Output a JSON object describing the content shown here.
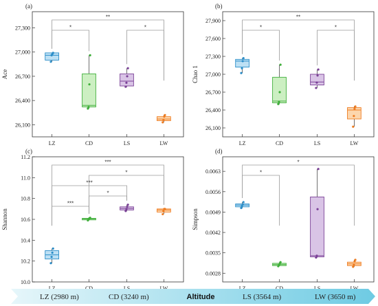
{
  "chart_data": [
    {
      "type": "box",
      "panel": "(a)",
      "ylabel": "Ace",
      "categories": [
        "LZ",
        "CD",
        "LS",
        "LW"
      ],
      "yticks": [
        26100,
        26400,
        26700,
        27000,
        27300
      ],
      "ytick_labels": [
        "26,100",
        "26,400",
        "26,700",
        "27,000",
        "27,300"
      ],
      "ylim": [
        25950,
        27500
      ],
      "boxes": [
        {
          "q1": 26900,
          "median": 26960,
          "q3": 26990,
          "min": 26880,
          "max": 26990,
          "points": [
            26880,
            26960,
            26975,
            26990
          ]
        },
        {
          "q1": 26320,
          "median": 26340,
          "q3": 26730,
          "min": 26300,
          "max": 26960,
          "points": [
            26300,
            26320,
            26600,
            26960
          ]
        },
        {
          "q1": 26580,
          "median": 26640,
          "q3": 26730,
          "min": 26570,
          "max": 26800,
          "points": [
            26570,
            26620,
            26700,
            26800
          ]
        },
        {
          "q1": 26150,
          "median": 26170,
          "q3": 26200,
          "min": 26130,
          "max": 26220,
          "points": [
            26130,
            26160,
            26200,
            26220
          ]
        }
      ],
      "brackets": [
        {
          "from": 0,
          "to": 3,
          "label": "**",
          "level": 0
        },
        {
          "from": 0,
          "to": 1,
          "label": "*",
          "level": 1
        },
        {
          "from": 2,
          "to": 3,
          "label": "*",
          "level": 1
        }
      ]
    },
    {
      "type": "box",
      "panel": "(b)",
      "ylabel": "Chao 1",
      "categories": [
        "LZ",
        "CD",
        "LS",
        "LW"
      ],
      "yticks": [
        26100,
        26400,
        26700,
        27000,
        27300,
        27600,
        27900
      ],
      "ytick_labels": [
        "26,100",
        "26,400",
        "26,700",
        "27,000",
        "27,300",
        "27,600",
        "27,900"
      ],
      "ylim": [
        25950,
        28050
      ],
      "boxes": [
        {
          "q1": 27120,
          "median": 27220,
          "q3": 27250,
          "min": 27020,
          "max": 27270,
          "points": [
            27020,
            27100,
            27220,
            27270
          ]
        },
        {
          "q1": 26520,
          "median": 26550,
          "q3": 26950,
          "min": 26500,
          "max": 27160,
          "points": [
            26500,
            26540,
            26700,
            27160
          ]
        },
        {
          "q1": 26820,
          "median": 26870,
          "q3": 27000,
          "min": 26770,
          "max": 27080,
          "points": [
            26770,
            26860,
            26980,
            27080
          ]
        },
        {
          "q1": 26250,
          "median": 26400,
          "q3": 26440,
          "min": 26120,
          "max": 26460,
          "points": [
            26120,
            26300,
            26420,
            26460
          ]
        }
      ],
      "brackets": [
        {
          "from": 0,
          "to": 3,
          "label": "**",
          "level": 0
        },
        {
          "from": 0,
          "to": 1,
          "label": "*",
          "level": 1
        },
        {
          "from": 2,
          "to": 3,
          "label": "*",
          "level": 1
        }
      ]
    },
    {
      "type": "box",
      "panel": "(c)",
      "ylabel": "Shannon",
      "categories": [
        "LZ",
        "CD",
        "LS",
        "LW"
      ],
      "yticks": [
        10.0,
        10.2,
        10.4,
        10.6,
        10.8,
        11.0,
        11.2
      ],
      "ytick_labels": [
        "10.0",
        "10.2",
        "10.4",
        "10.6",
        "10.8",
        "11.0",
        "11.2"
      ],
      "ylim": [
        10.0,
        11.2
      ],
      "boxes": [
        {
          "q1": 10.22,
          "median": 10.26,
          "q3": 10.3,
          "min": 10.18,
          "max": 10.32,
          "points": [
            10.18,
            10.24,
            10.28,
            10.32
          ]
        },
        {
          "q1": 10.595,
          "median": 10.605,
          "q3": 10.61,
          "min": 10.59,
          "max": 10.615,
          "points": [
            10.59,
            10.6,
            10.61,
            10.615
          ]
        },
        {
          "q1": 10.69,
          "median": 10.705,
          "q3": 10.72,
          "min": 10.68,
          "max": 10.74,
          "points": [
            10.68,
            10.7,
            10.72,
            10.74
          ]
        },
        {
          "q1": 10.67,
          "median": 10.69,
          "q3": 10.7,
          "min": 10.65,
          "max": 10.7,
          "points": [
            10.65,
            10.68,
            10.7,
            10.7
          ]
        }
      ],
      "brackets": [
        {
          "from": 0,
          "to": 3,
          "label": "***",
          "level": 0
        },
        {
          "from": 1,
          "to": 3,
          "label": "*",
          "level": 1
        },
        {
          "from": 0,
          "to": 2,
          "label": "***",
          "level": 2
        },
        {
          "from": 1,
          "to": 2,
          "label": "*",
          "level": 3
        },
        {
          "from": 0,
          "to": 1,
          "label": "***",
          "level": 4
        }
      ]
    },
    {
      "type": "box",
      "panel": "(d)",
      "ylabel": "Simpson",
      "categories": [
        "LZ",
        "CD",
        "LS",
        "LW"
      ],
      "yticks": [
        0.0028,
        0.0035,
        0.0042,
        0.0049,
        0.0056,
        0.0063
      ],
      "ytick_labels": [
        "0.0028",
        "0.0035",
        "0.0042",
        "0.0049",
        "0.0056",
        "0.0063"
      ],
      "ylim": [
        0.0025,
        0.0068
      ],
      "boxes": [
        {
          "q1": 0.00508,
          "median": 0.00514,
          "q3": 0.00518,
          "min": 0.00504,
          "max": 0.00524,
          "points": [
            0.00504,
            0.0051,
            0.00516,
            0.00524
          ]
        },
        {
          "q1": 0.00306,
          "median": 0.0031,
          "q3": 0.00314,
          "min": 0.00304,
          "max": 0.00318,
          "points": [
            0.00304,
            0.00308,
            0.00312,
            0.00318
          ]
        },
        {
          "q1": 0.00336,
          "median": 0.0034,
          "q3": 0.00542,
          "min": 0.00334,
          "max": 0.00638,
          "points": [
            0.00334,
            0.0034,
            0.005,
            0.00638
          ]
        },
        {
          "q1": 0.00306,
          "median": 0.00312,
          "q3": 0.00318,
          "min": 0.00302,
          "max": 0.00326,
          "points": [
            0.00302,
            0.0031,
            0.0032,
            0.00326
          ]
        }
      ],
      "brackets": [
        {
          "from": 0,
          "to": 3,
          "label": "*",
          "level": 0
        },
        {
          "from": 0,
          "to": 1,
          "label": "*",
          "level": 1
        }
      ]
    }
  ],
  "group_colors": {
    "LZ": {
      "fill": "#bde0f4",
      "stroke": "#2c8ec9"
    },
    "CD": {
      "fill": "#ccefc2",
      "stroke": "#3fae3a"
    },
    "LS": {
      "fill": "#d9c4e6",
      "stroke": "#7b4197"
    },
    "LW": {
      "fill": "#fcd6ad",
      "stroke": "#ef7d22"
    }
  },
  "altitude_band": {
    "items": [
      "LZ (2980 m)",
      "CD (3240 m)",
      "Altitude",
      "LS (3564 m)",
      "LW (3650 m)"
    ],
    "gradient": [
      "#e6f6fa",
      "#6ecbe3"
    ]
  }
}
